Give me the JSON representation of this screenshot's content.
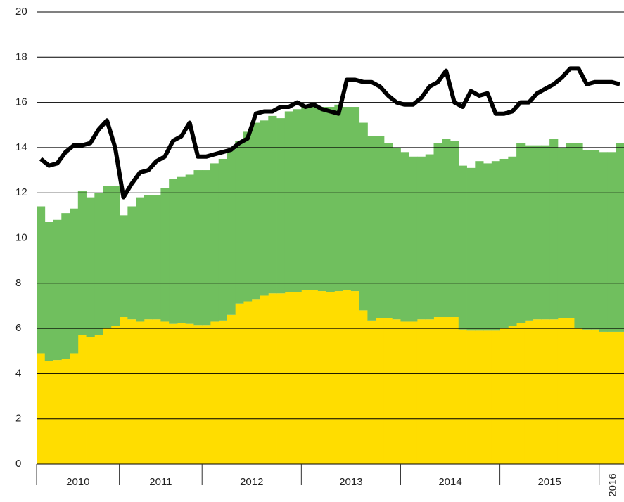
{
  "chart_data": {
    "type": "bar",
    "stacked": true,
    "categories": [
      "2010",
      "2010",
      "2010",
      "2010",
      "2010",
      "2010",
      "2010",
      "2010",
      "2010",
      "2010",
      "2011",
      "2011",
      "2011",
      "2011",
      "2011",
      "2011",
      "2011",
      "2011",
      "2011",
      "2011",
      "2012",
      "2012",
      "2012",
      "2012",
      "2012",
      "2012",
      "2012",
      "2012",
      "2012",
      "2012",
      "2012",
      "2012",
      "2013",
      "2013",
      "2013",
      "2013",
      "2013",
      "2013",
      "2013",
      "2013",
      "2013",
      "2013",
      "2013",
      "2013",
      "2014",
      "2014",
      "2014",
      "2014",
      "2014",
      "2014",
      "2014",
      "2014",
      "2014",
      "2014",
      "2014",
      "2014",
      "2015",
      "2015",
      "2015",
      "2015",
      "2015",
      "2015",
      "2015",
      "2015",
      "2015",
      "2015",
      "2015",
      "2015",
      "2016",
      "2016",
      "2016"
    ],
    "series": [
      {
        "type": "bar",
        "color": "#ffdd00",
        "values": [
          4.9,
          4.55,
          4.6,
          4.65,
          4.9,
          5.7,
          5.6,
          5.7,
          6.0,
          6.1,
          6.5,
          6.4,
          6.3,
          6.4,
          6.4,
          6.3,
          6.2,
          6.25,
          6.2,
          6.15,
          6.15,
          6.3,
          6.35,
          6.6,
          7.1,
          7.2,
          7.3,
          7.45,
          7.55,
          7.55,
          7.6,
          7.6,
          7.7,
          7.7,
          7.65,
          7.6,
          7.65,
          7.7,
          7.65,
          6.8,
          6.35,
          6.45,
          6.45,
          6.4,
          6.3,
          6.3,
          6.4,
          6.4,
          6.5,
          6.5,
          6.5,
          5.95,
          5.9,
          5.9,
          5.9,
          5.9,
          6.0,
          6.1,
          6.25,
          6.35,
          6.4,
          6.4,
          6.4,
          6.45,
          6.45,
          6.0,
          5.95,
          5.95,
          5.85,
          5.85,
          5.85
        ]
      },
      {
        "type": "bar",
        "color": "#70bf5e",
        "values": [
          6.5,
          6.15,
          6.2,
          6.45,
          6.4,
          6.4,
          6.2,
          6.3,
          6.3,
          6.2,
          4.5,
          5.0,
          5.5,
          5.5,
          5.5,
          5.9,
          6.4,
          6.45,
          6.6,
          6.85,
          6.85,
          7.0,
          7.15,
          7.3,
          7.2,
          7.5,
          7.8,
          7.75,
          7.85,
          7.75,
          8.0,
          8.1,
          8.1,
          8.2,
          8.15,
          8.2,
          8.25,
          8.1,
          8.15,
          8.3,
          8.15,
          8.05,
          7.75,
          7.6,
          7.5,
          7.3,
          7.2,
          7.3,
          7.7,
          7.9,
          7.8,
          7.25,
          7.2,
          7.5,
          7.4,
          7.5,
          7.5,
          7.5,
          7.95,
          7.75,
          7.7,
          7.7,
          8.0,
          7.55,
          7.75,
          8.2,
          7.95,
          7.95,
          7.95,
          7.95,
          8.35
        ]
      },
      {
        "type": "line",
        "color": "#000000",
        "values": [
          13.5,
          13.2,
          13.3,
          13.8,
          14.1,
          14.1,
          14.2,
          14.8,
          15.2,
          14.0,
          11.8,
          12.4,
          12.9,
          13.0,
          13.4,
          13.6,
          14.3,
          14.5,
          15.1,
          13.6,
          13.6,
          13.7,
          13.8,
          13.9,
          14.2,
          14.4,
          15.5,
          15.6,
          15.6,
          15.8,
          15.8,
          16.0,
          15.8,
          15.9,
          15.7,
          15.6,
          15.5,
          17.0,
          17.0,
          16.9,
          16.9,
          16.7,
          16.3,
          16.0,
          15.9,
          15.9,
          16.2,
          16.7,
          16.9,
          17.4,
          16.0,
          15.8,
          16.5,
          16.3,
          16.4,
          15.5,
          15.5,
          15.6,
          16.0,
          16.0,
          16.4,
          16.6,
          16.8,
          17.1,
          17.5,
          17.5,
          16.8,
          16.9,
          16.9,
          16.9,
          16.8
        ]
      }
    ],
    "ylim": [
      0,
      20
    ],
    "yticks": [
      0,
      2,
      4,
      6,
      8,
      10,
      12,
      14,
      16,
      18,
      20
    ],
    "grid": true
  }
}
